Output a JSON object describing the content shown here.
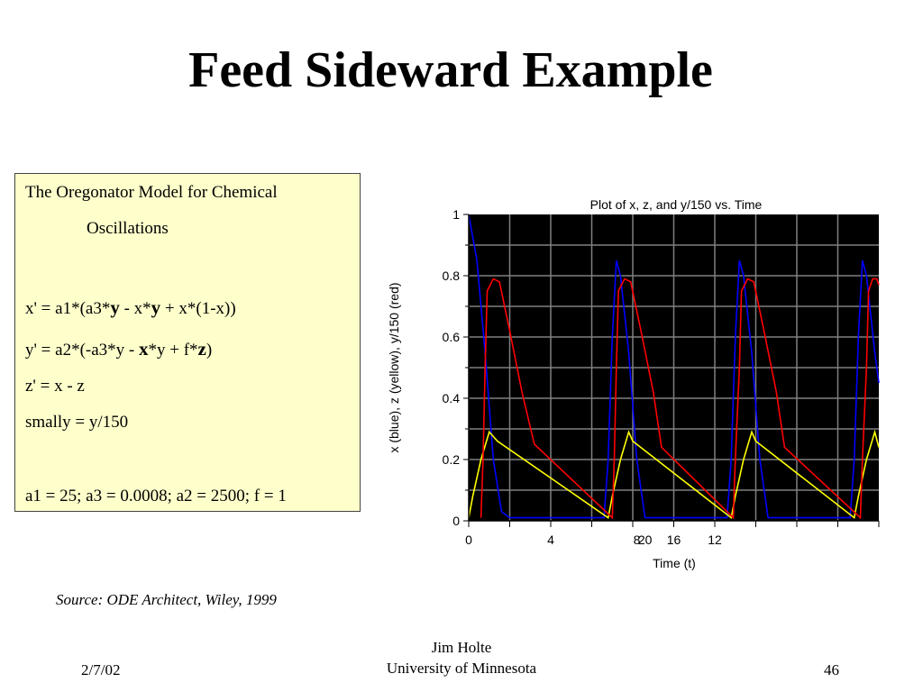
{
  "slide": {
    "title": "Feed Sideward Example",
    "source": "Source: ODE Architect, Wiley, 1999",
    "footer": {
      "date": "2/7/02",
      "author": "Jim Holte",
      "institution": "University of Minnesota",
      "page": "46"
    }
  },
  "model_box": {
    "heading_1": "The Oregonator Model for Chemical",
    "heading_2": "Oscillations",
    "eq_x": {
      "p1": "x' = a1*(a3*",
      "b1": "y",
      "p2": " - x*",
      "b2": "y",
      "p3": " + x*(1-x))"
    },
    "eq_y": {
      "p1": "y' = a2*(-a3*y - ",
      "b1": "x",
      "p2": "*y + f*",
      "b2": "z",
      "p3": ")"
    },
    "eq_z": "z' = x - z",
    "smally": "smally = y/150",
    "params": "a1 = 25; a3 = 0.0008; a2 = 2500; f = 1",
    "colors": {
      "background": "#ffffcc",
      "border": "#444444"
    }
  },
  "chart_data": {
    "type": "line",
    "title": "Plot of x, z, and y/150 vs. Time",
    "xlabel": "Time (t)",
    "ylabel": "x (blue), z (yellow), y/150 (red)",
    "ylim": [
      0,
      1
    ],
    "yticks": [
      "0",
      "0.2",
      "0.4",
      "0.6",
      "0.8",
      "1"
    ],
    "xtick_labels": [
      "0",
      "4",
      "8",
      "20",
      "16",
      "12"
    ],
    "grid": true,
    "background": "#000000",
    "grid_color": "#808080",
    "series": [
      {
        "name": "x (blue)",
        "color": "#0000ff",
        "x": [
          0,
          0.4,
          0.8,
          1.2,
          1.6,
          2.0,
          6.6,
          6.8,
          7.0,
          7.2,
          7.4,
          7.8,
          8.2,
          8.6,
          12.6,
          12.8,
          13.0,
          13.2,
          13.4,
          13.8,
          14.2,
          14.6,
          18.6,
          18.8,
          19.0,
          19.2,
          19.4,
          19.8,
          20.0
        ],
        "y": [
          1.0,
          0.85,
          0.55,
          0.2,
          0.03,
          0.01,
          0.01,
          0.2,
          0.6,
          0.85,
          0.8,
          0.55,
          0.2,
          0.01,
          0.01,
          0.2,
          0.6,
          0.85,
          0.8,
          0.55,
          0.2,
          0.01,
          0.01,
          0.2,
          0.6,
          0.85,
          0.8,
          0.55,
          0.45
        ]
      },
      {
        "name": "z (yellow)",
        "color": "#ffff00",
        "x": [
          0,
          0.2,
          0.6,
          1.0,
          1.4,
          6.8,
          7.0,
          7.4,
          7.8,
          8.0,
          12.8,
          13.0,
          13.4,
          13.8,
          14.0,
          18.8,
          19.0,
          19.4,
          19.8,
          20.0
        ],
        "y": [
          0.01,
          0.08,
          0.2,
          0.29,
          0.26,
          0.01,
          0.08,
          0.2,
          0.29,
          0.26,
          0.01,
          0.08,
          0.2,
          0.29,
          0.26,
          0.01,
          0.08,
          0.2,
          0.29,
          0.24
        ]
      },
      {
        "name": "y/150 (red)",
        "color": "#ff0000",
        "x": [
          0.6,
          0.7,
          0.8,
          0.9,
          1.2,
          1.5,
          2.0,
          2.6,
          3.2,
          7.0,
          7.1,
          7.2,
          7.3,
          7.6,
          7.9,
          8.4,
          9.0,
          9.4,
          12.9,
          13.0,
          13.2,
          13.3,
          13.6,
          13.9,
          14.4,
          15.0,
          15.4,
          19.1,
          19.2,
          19.4,
          19.5,
          19.7,
          19.9,
          20.0
        ],
        "y": [
          0.01,
          0.2,
          0.5,
          0.75,
          0.79,
          0.78,
          0.62,
          0.42,
          0.25,
          0.01,
          0.2,
          0.5,
          0.75,
          0.79,
          0.78,
          0.62,
          0.42,
          0.24,
          0.01,
          0.2,
          0.5,
          0.75,
          0.79,
          0.78,
          0.62,
          0.42,
          0.24,
          0.01,
          0.2,
          0.5,
          0.75,
          0.79,
          0.79,
          0.77
        ]
      }
    ]
  }
}
